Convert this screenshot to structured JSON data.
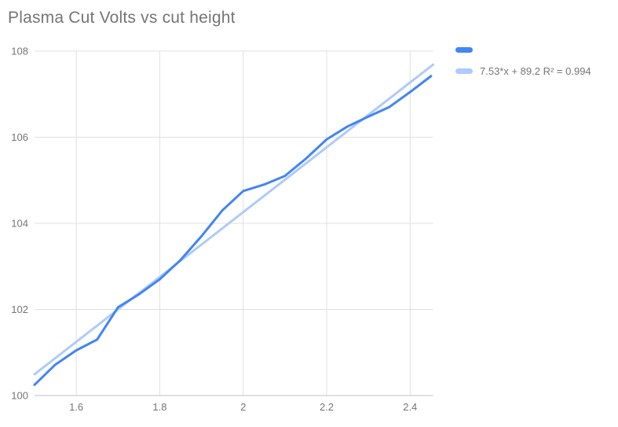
{
  "chart": {
    "title": "Plasma Cut Volts vs cut height"
  },
  "legend": {
    "items": [
      {
        "label": "",
        "color": "#4285f4"
      },
      {
        "label": "7.53*x + 89.2 R² = 0.994",
        "color": "#aecbfa"
      }
    ]
  },
  "chart_data": {
    "type": "line",
    "title": "Plasma Cut Volts vs cut height",
    "xlabel": "",
    "ylabel": "",
    "xlim": [
      1.5,
      2.455
    ],
    "ylim": [
      100,
      108
    ],
    "grid": true,
    "legend_position": "right",
    "x": [
      1.5,
      1.55,
      1.6,
      1.65,
      1.7,
      1.75,
      1.8,
      1.85,
      1.9,
      1.95,
      2.0,
      2.05,
      2.1,
      2.15,
      2.2,
      2.25,
      2.3,
      2.35,
      2.4,
      2.45
    ],
    "series": [
      {
        "name": "",
        "color": "#4285f4",
        "values": [
          100.25,
          100.72,
          101.05,
          101.3,
          102.05,
          102.35,
          102.7,
          103.15,
          103.7,
          104.3,
          104.75,
          104.9,
          105.1,
          105.5,
          105.95,
          106.25,
          106.48,
          106.7,
          107.05,
          107.42
        ]
      },
      {
        "name": "7.53*x + 89.2 R² = 0.994",
        "color": "#aecbfa",
        "type": "trendline",
        "slope": 7.53,
        "intercept": 89.2,
        "r2": 0.994
      }
    ],
    "xticks": [
      {
        "value": 1.6,
        "label": "1.6"
      },
      {
        "value": 1.8,
        "label": "1.8"
      },
      {
        "value": 2.0,
        "label": "2"
      },
      {
        "value": 2.2,
        "label": "2.2"
      },
      {
        "value": 2.4,
        "label": "2.4"
      }
    ],
    "yticks": [
      {
        "value": 100,
        "label": "100"
      },
      {
        "value": 102,
        "label": "102"
      },
      {
        "value": 104,
        "label": "104"
      },
      {
        "value": 106,
        "label": "106"
      },
      {
        "value": 108,
        "label": "108"
      }
    ]
  },
  "style": {
    "gridline": "#e0e0e0",
    "baseline": "#c2c2c2",
    "tick_text": "#757575",
    "title_text": "#757575",
    "background": "#ffffff",
    "series_line_width": 3,
    "trendline_width": 3
  }
}
